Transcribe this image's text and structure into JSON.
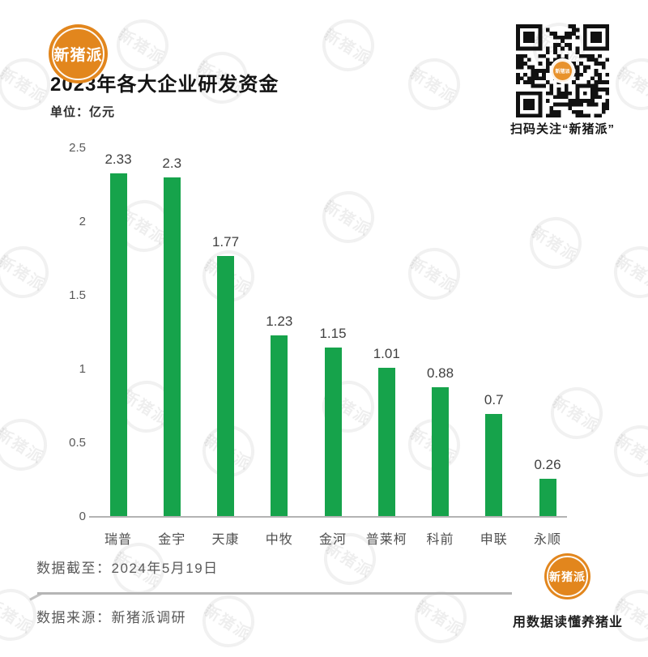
{
  "brand": {
    "name": "新猪派",
    "slogan": "用数据读懂养猪业",
    "qr_caption": "扫码关注“新猪派”",
    "colors": {
      "orange": "#e2861d",
      "green": "#16a34b"
    }
  },
  "header": {
    "title": "2023年各大企业研发资金",
    "unit_label": "单位：亿元"
  },
  "chart_data": {
    "type": "bar",
    "title": "2023年各大企业研发资金",
    "unit": "亿元",
    "categories": [
      "瑞普",
      "金宇",
      "天康",
      "中牧",
      "金河",
      "普莱柯",
      "科前",
      "申联",
      "永顺"
    ],
    "values": [
      2.33,
      2.3,
      1.77,
      1.23,
      1.15,
      1.01,
      0.88,
      0.7,
      0.26
    ],
    "value_labels": [
      "2.33",
      "2.3",
      "1.77",
      "1.23",
      "1.15",
      "1.01",
      "0.88",
      "0.7",
      "0.26"
    ],
    "ylim": [
      0,
      2.5
    ],
    "yticks": [
      0,
      0.5,
      1,
      1.5,
      2,
      2.5
    ],
    "ytick_labels": [
      "0",
      "0.5",
      "1",
      "1.5",
      "2",
      "2.5"
    ],
    "grid": false,
    "legend_position": "none",
    "bar_color": "#16a34b",
    "value_label_color": "#404040",
    "axis_label_color": "#595959"
  },
  "footer": {
    "data_cutoff": "数据截至：2024年5月19日",
    "data_source": "数据来源：新猪派调研"
  },
  "watermark": {
    "text": "新猪派"
  }
}
